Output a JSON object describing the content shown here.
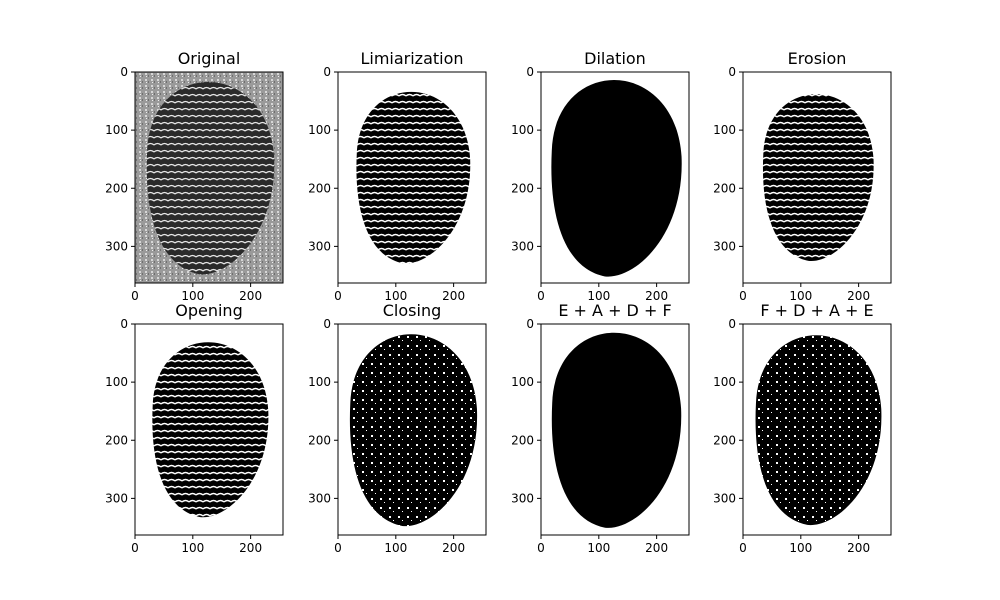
{
  "chart_data": {
    "type": "image-grid",
    "layout": {
      "rows": 2,
      "cols": 4
    },
    "axes": {
      "xlim": [
        0,
        256
      ],
      "ylim": [
        363,
        0
      ],
      "xticks": [
        0,
        100,
        200
      ],
      "yticks": [
        0,
        100,
        200,
        300
      ]
    },
    "panels": [
      {
        "title": "Original",
        "mode": "grayscale"
      },
      {
        "title": "Limiarization",
        "mode": "binary",
        "fill": 0.55
      },
      {
        "title": "Dilation",
        "mode": "binary",
        "fill": 0.92
      },
      {
        "title": "Erosion",
        "mode": "binary",
        "fill": 0.48
      },
      {
        "title": "Opening",
        "mode": "binary",
        "fill": 0.6
      },
      {
        "title": "Closing",
        "mode": "binary",
        "fill": 0.85
      },
      {
        "title": "E + A + D + F",
        "mode": "binary",
        "fill": 0.9
      },
      {
        "title": "F + D + A + E",
        "mode": "binary",
        "fill": 0.82
      }
    ]
  }
}
